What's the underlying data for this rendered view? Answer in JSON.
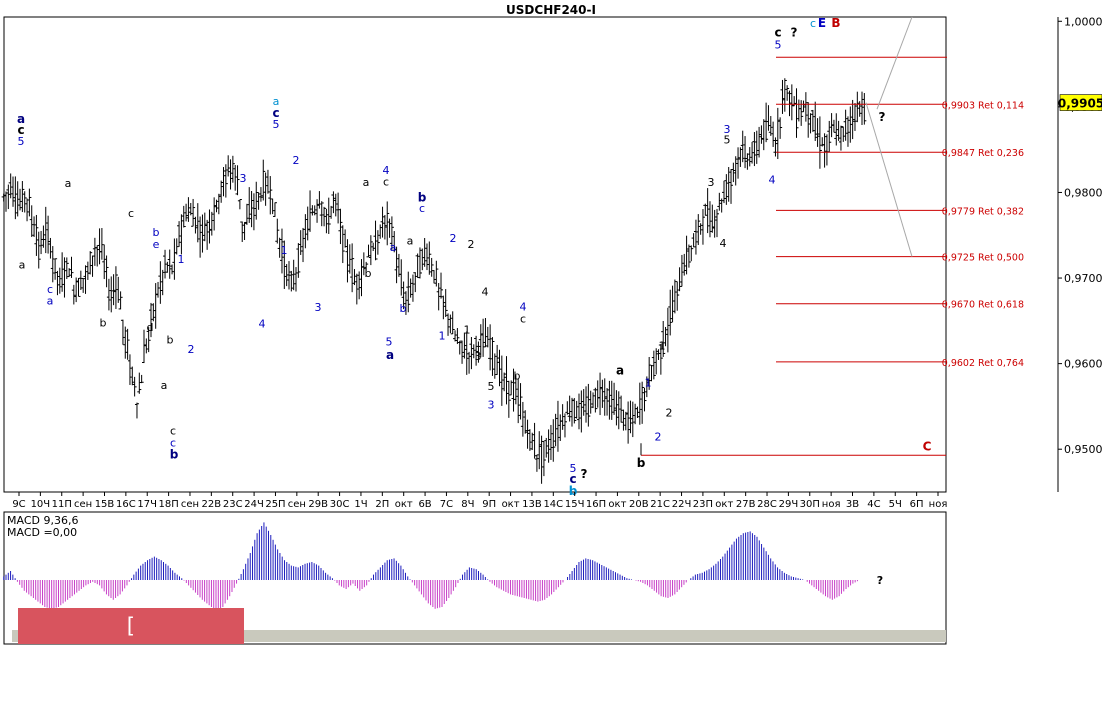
{
  "chart_data": {
    "type": "ohlc",
    "title": "USDCHF240-I",
    "price_axis": {
      "min": 0.945,
      "max": 1.0005,
      "ticks": [
        "1,0000",
        "0,9900",
        "0,9800",
        "0,9700",
        "0,9600",
        "0,9500"
      ],
      "current_price": "0,9905"
    },
    "x_labels": [
      "9С",
      "10Ч",
      "11П",
      "сен",
      "15В",
      "16С",
      "17Ч",
      "18П",
      "сен",
      "22В",
      "23С",
      "24Ч",
      "25П",
      "сен",
      "29В",
      "30С",
      "1Ч",
      "2П",
      "окт",
      "6В",
      "7С",
      "8Ч",
      "9П",
      "окт",
      "13В",
      "14С",
      "15Ч",
      "16П",
      "окт",
      "20В",
      "21С",
      "22Ч",
      "23П",
      "окт",
      "27В",
      "28С",
      "29Ч",
      "30П",
      "ноя",
      "3В",
      "4С",
      "5Ч",
      "6П",
      "ноя"
    ],
    "price_path": [
      0.9795,
      0.981,
      0.978,
      0.98,
      0.976,
      0.973,
      0.976,
      0.971,
      0.969,
      0.972,
      0.968,
      0.97,
      0.971,
      0.974,
      0.973,
      0.967,
      0.97,
      0.963,
      0.959,
      0.955,
      0.962,
      0.966,
      0.969,
      0.972,
      0.971,
      0.976,
      0.978,
      0.977,
      0.975,
      0.976,
      0.978,
      0.981,
      0.983,
      0.982,
      0.975,
      0.978,
      0.979,
      0.981,
      0.98,
      0.974,
      0.971,
      0.969,
      0.973,
      0.976,
      0.978,
      0.979,
      0.976,
      0.98,
      0.975,
      0.972,
      0.969,
      0.971,
      0.973,
      0.974,
      0.977,
      0.976,
      0.971,
      0.967,
      0.969,
      0.972,
      0.973,
      0.971,
      0.968,
      0.966,
      0.963,
      0.962,
      0.961,
      0.962,
      0.963,
      0.962,
      0.96,
      0.958,
      0.957,
      0.956,
      0.953,
      0.951,
      0.949,
      0.95,
      0.951,
      0.953,
      0.954,
      0.955,
      0.954,
      0.955,
      0.956,
      0.957,
      0.956,
      0.955,
      0.954,
      0.953,
      0.954,
      0.956,
      0.959,
      0.961,
      0.963,
      0.966,
      0.969,
      0.972,
      0.974,
      0.976,
      0.978,
      0.976,
      0.979,
      0.981,
      0.983,
      0.985,
      0.984,
      0.985,
      0.987,
      0.988,
      0.985,
      0.993,
      0.991,
      0.989,
      0.99,
      0.989,
      0.986,
      0.985,
      0.988,
      0.986,
      0.988,
      0.989,
      0.99
    ],
    "fib_levels": [
      {
        "price": 0.9903,
        "label": "0,9903 Ret 0,114"
      },
      {
        "price": 0.9847,
        "label": "0,9847 Ret 0,236"
      },
      {
        "price": 0.9779,
        "label": "0,9779 Ret 0,382"
      },
      {
        "price": 0.9725,
        "label": "0,9725 Ret 0,500"
      },
      {
        "price": 0.967,
        "label": "0,9670 Ret 0,618"
      },
      {
        "price": 0.9602,
        "label": "0,9602 Ret 0,764"
      }
    ],
    "fib_top": 0.9958,
    "c_line_price": 0.9493,
    "wave_labels": [
      {
        "t": "a",
        "x": 21,
        "p": 0.9886,
        "c": "#000080",
        "b": true
      },
      {
        "t": "c",
        "x": 21,
        "p": 0.9873,
        "c": "#000000",
        "b": true
      },
      {
        "t": "5",
        "x": 21,
        "p": 0.986,
        "c": "#0000c0"
      },
      {
        "t": "a",
        "x": 22,
        "p": 0.9716,
        "c": "#000000"
      },
      {
        "t": "c",
        "x": 50,
        "p": 0.9687,
        "c": "#0000c0"
      },
      {
        "t": "a",
        "x": 50,
        "p": 0.9674,
        "c": "#0000c0"
      },
      {
        "t": "a",
        "x": 68,
        "p": 0.9811,
        "c": "#000000"
      },
      {
        "t": "b",
        "x": 103,
        "p": 0.9648,
        "c": "#000000"
      },
      {
        "t": "c",
        "x": 131,
        "p": 0.9776,
        "c": "#000000"
      },
      {
        "t": "b",
        "x": 156,
        "p": 0.9754,
        "c": "#0000c0"
      },
      {
        "t": "e",
        "x": 156,
        "p": 0.974,
        "c": "#0000c0"
      },
      {
        "t": "d",
        "x": 150,
        "p": 0.9643,
        "c": "#000000"
      },
      {
        "t": "1",
        "x": 181,
        "p": 0.9722,
        "c": "#0000c0"
      },
      {
        "t": "b",
        "x": 170,
        "p": 0.9628,
        "c": "#000000"
      },
      {
        "t": "2",
        "x": 191,
        "p": 0.9617,
        "c": "#0000c0"
      },
      {
        "t": "a",
        "x": 164,
        "p": 0.9575,
        "c": "#000000"
      },
      {
        "t": "c",
        "x": 173,
        "p": 0.9522,
        "c": "#000000"
      },
      {
        "t": "c",
        "x": 173,
        "p": 0.9508,
        "c": "#0000c0"
      },
      {
        "t": "b",
        "x": 174,
        "p": 0.9494,
        "c": "#000080",
        "b": true
      },
      {
        "t": "3",
        "x": 243,
        "p": 0.9817,
        "c": "#0000c0"
      },
      {
        "t": "4",
        "x": 262,
        "p": 0.9647,
        "c": "#0000c0"
      },
      {
        "t": "a",
        "x": 276,
        "p": 0.9907,
        "c": "#0090d0"
      },
      {
        "t": "c",
        "x": 276,
        "p": 0.9893,
        "c": "#000080",
        "b": true
      },
      {
        "t": "5",
        "x": 276,
        "p": 0.988,
        "c": "#0000c0"
      },
      {
        "t": "2",
        "x": 296,
        "p": 0.9838,
        "c": "#0000c0"
      },
      {
        "t": "1",
        "x": 284,
        "p": 0.9733,
        "c": "#0000c0"
      },
      {
        "t": "3",
        "x": 318,
        "p": 0.9666,
        "c": "#0000c0"
      },
      {
        "t": "a",
        "x": 366,
        "p": 0.9812,
        "c": "#000000"
      },
      {
        "t": "4",
        "x": 386,
        "p": 0.9826,
        "c": "#0000c0"
      },
      {
        "t": "c",
        "x": 386,
        "p": 0.9813,
        "c": "#000000"
      },
      {
        "t": "b",
        "x": 368,
        "p": 0.9706,
        "c": "#000000"
      },
      {
        "t": "a",
        "x": 393,
        "p": 0.9736,
        "c": "#0000c0"
      },
      {
        "t": "b",
        "x": 403,
        "p": 0.9665,
        "c": "#0000c0"
      },
      {
        "t": "5",
        "x": 389,
        "p": 0.9626,
        "c": "#0000c0"
      },
      {
        "t": "a",
        "x": 390,
        "p": 0.961,
        "c": "#000080",
        "b": true
      },
      {
        "t": "b",
        "x": 422,
        "p": 0.9794,
        "c": "#000080",
        "b": true
      },
      {
        "t": "c",
        "x": 422,
        "p": 0.9782,
        "c": "#0000c0"
      },
      {
        "t": "a",
        "x": 410,
        "p": 0.9744,
        "c": "#000000"
      },
      {
        "t": "2",
        "x": 453,
        "p": 0.9747,
        "c": "#0000c0"
      },
      {
        "t": "2",
        "x": 471,
        "p": 0.974,
        "c": "#000000"
      },
      {
        "t": "1",
        "x": 442,
        "p": 0.9633,
        "c": "#0000c0"
      },
      {
        "t": "4",
        "x": 485,
        "p": 0.9684,
        "c": "#000000"
      },
      {
        "t": "1",
        "x": 467,
        "p": 0.964,
        "c": "#000000"
      },
      {
        "t": "3",
        "x": 478,
        "p": 0.9609,
        "c": "#000000"
      },
      {
        "t": "4",
        "x": 523,
        "p": 0.9667,
        "c": "#0000c0"
      },
      {
        "t": "c",
        "x": 523,
        "p": 0.9653,
        "c": "#000000"
      },
      {
        "t": "5",
        "x": 491,
        "p": 0.9574,
        "c": "#000000"
      },
      {
        "t": "3",
        "x": 491,
        "p": 0.9552,
        "c": "#0000c0"
      },
      {
        "t": "b",
        "x": 517,
        "p": 0.9586,
        "c": "#000000"
      },
      {
        "t": "5",
        "x": 573,
        "p": 0.9478,
        "c": "#0000c0"
      },
      {
        "t": "c",
        "x": 573,
        "p": 0.9465,
        "c": "#000080",
        "b": true
      },
      {
        "t": "?",
        "x": 584,
        "p": 0.9471,
        "c": "#000000",
        "b": true
      },
      {
        "t": "b",
        "x": 573,
        "p": 0.9451,
        "c": "#0090d0",
        "b": true
      },
      {
        "t": "a",
        "x": 620,
        "p": 0.9592,
        "c": "#000000",
        "b": true
      },
      {
        "t": "1",
        "x": 648,
        "p": 0.9578,
        "c": "#0000c0"
      },
      {
        "t": "1",
        "x": 662,
        "p": 0.9621,
        "c": "#000000"
      },
      {
        "t": "2",
        "x": 669,
        "p": 0.9543,
        "c": "#000000"
      },
      {
        "t": "2",
        "x": 658,
        "p": 0.9515,
        "c": "#0000c0"
      },
      {
        "t": "b",
        "x": 641,
        "p": 0.9484,
        "c": "#000000",
        "b": true
      },
      {
        "t": "3",
        "x": 711,
        "p": 0.9812,
        "c": "#000000"
      },
      {
        "t": "4",
        "x": 723,
        "p": 0.9741,
        "c": "#000000"
      },
      {
        "t": "3",
        "x": 727,
        "p": 0.9874,
        "c": "#0000c0"
      },
      {
        "t": "5",
        "x": 727,
        "p": 0.9862,
        "c": "#000000"
      },
      {
        "t": "4",
        "x": 772,
        "p": 0.9815,
        "c": "#0000c0"
      },
      {
        "t": "c",
        "x": 778,
        "p": 0.9987,
        "c": "#000000",
        "b": true
      },
      {
        "t": "?",
        "x": 794,
        "p": 0.9987,
        "c": "#000000",
        "b": true
      },
      {
        "t": "5",
        "x": 778,
        "p": 0.9973,
        "c": "#0000c0"
      },
      {
        "t": "c",
        "x": 813,
        "p": 0.9998,
        "c": "#0090d0"
      },
      {
        "t": "E",
        "x": 822,
        "p": 0.9998,
        "c": "#0000c0",
        "b": true
      },
      {
        "t": "B",
        "x": 836,
        "p": 0.9998,
        "c": "#c00000",
        "b": true
      },
      {
        "t": "?",
        "x": 882,
        "p": 0.9888,
        "c": "#000000",
        "b": true
      },
      {
        "t": "C",
        "x": 927,
        "p": 0.9503,
        "c": "#c00000",
        "b": true
      }
    ],
    "macd": {
      "label1": "MACD 9,36,6",
      "label2": "MACD =0,00"
    },
    "macd_path": [
      0.2,
      0.5,
      -0.1,
      -0.6,
      -0.9,
      -1.2,
      -1.5,
      -1.6,
      -1.5,
      -1.2,
      -0.9,
      -0.6,
      -0.3,
      -0.1,
      -0.3,
      -0.8,
      -1.1,
      -0.8,
      -0.3,
      0.3,
      0.8,
      1.1,
      1.3,
      1.1,
      0.8,
      0.4,
      0.1,
      -0.3,
      -0.7,
      -1.1,
      -1.4,
      -1.7,
      -1.5,
      -0.9,
      -0.2,
      0.6,
      1.5,
      2.6,
      3.2,
      2.5,
      1.7,
      1.1,
      0.8,
      0.7,
      0.9,
      1.0,
      0.8,
      0.4,
      0.1,
      -0.3,
      -0.5,
      -0.2,
      -0.6,
      -0.3,
      0.3,
      0.7,
      1.1,
      1.2,
      0.8,
      0.2,
      -0.3,
      -0.8,
      -1.3,
      -1.6,
      -1.5,
      -1.0,
      -0.4,
      0.3,
      0.7,
      0.6,
      0.3,
      -0.1,
      -0.4,
      -0.6,
      -0.8,
      -0.9,
      -1.0,
      -1.1,
      -1.2,
      -1.1,
      -0.8,
      -0.4,
      0.0,
      0.5,
      1.0,
      1.2,
      1.1,
      0.9,
      0.7,
      0.5,
      0.3,
      0.1,
      0.0,
      -0.1,
      -0.3,
      -0.6,
      -0.9,
      -1.0,
      -0.8,
      -0.4,
      0.0,
      0.3,
      0.4,
      0.6,
      0.9,
      1.3,
      1.8,
      2.3,
      2.6,
      2.7,
      2.4,
      1.8,
      1.2,
      0.7,
      0.4,
      0.2,
      0.1,
      0.0,
      -0.3,
      -0.6,
      -0.9,
      -1.1,
      -0.9,
      -0.5,
      -0.2,
      0.0
    ]
  }
}
